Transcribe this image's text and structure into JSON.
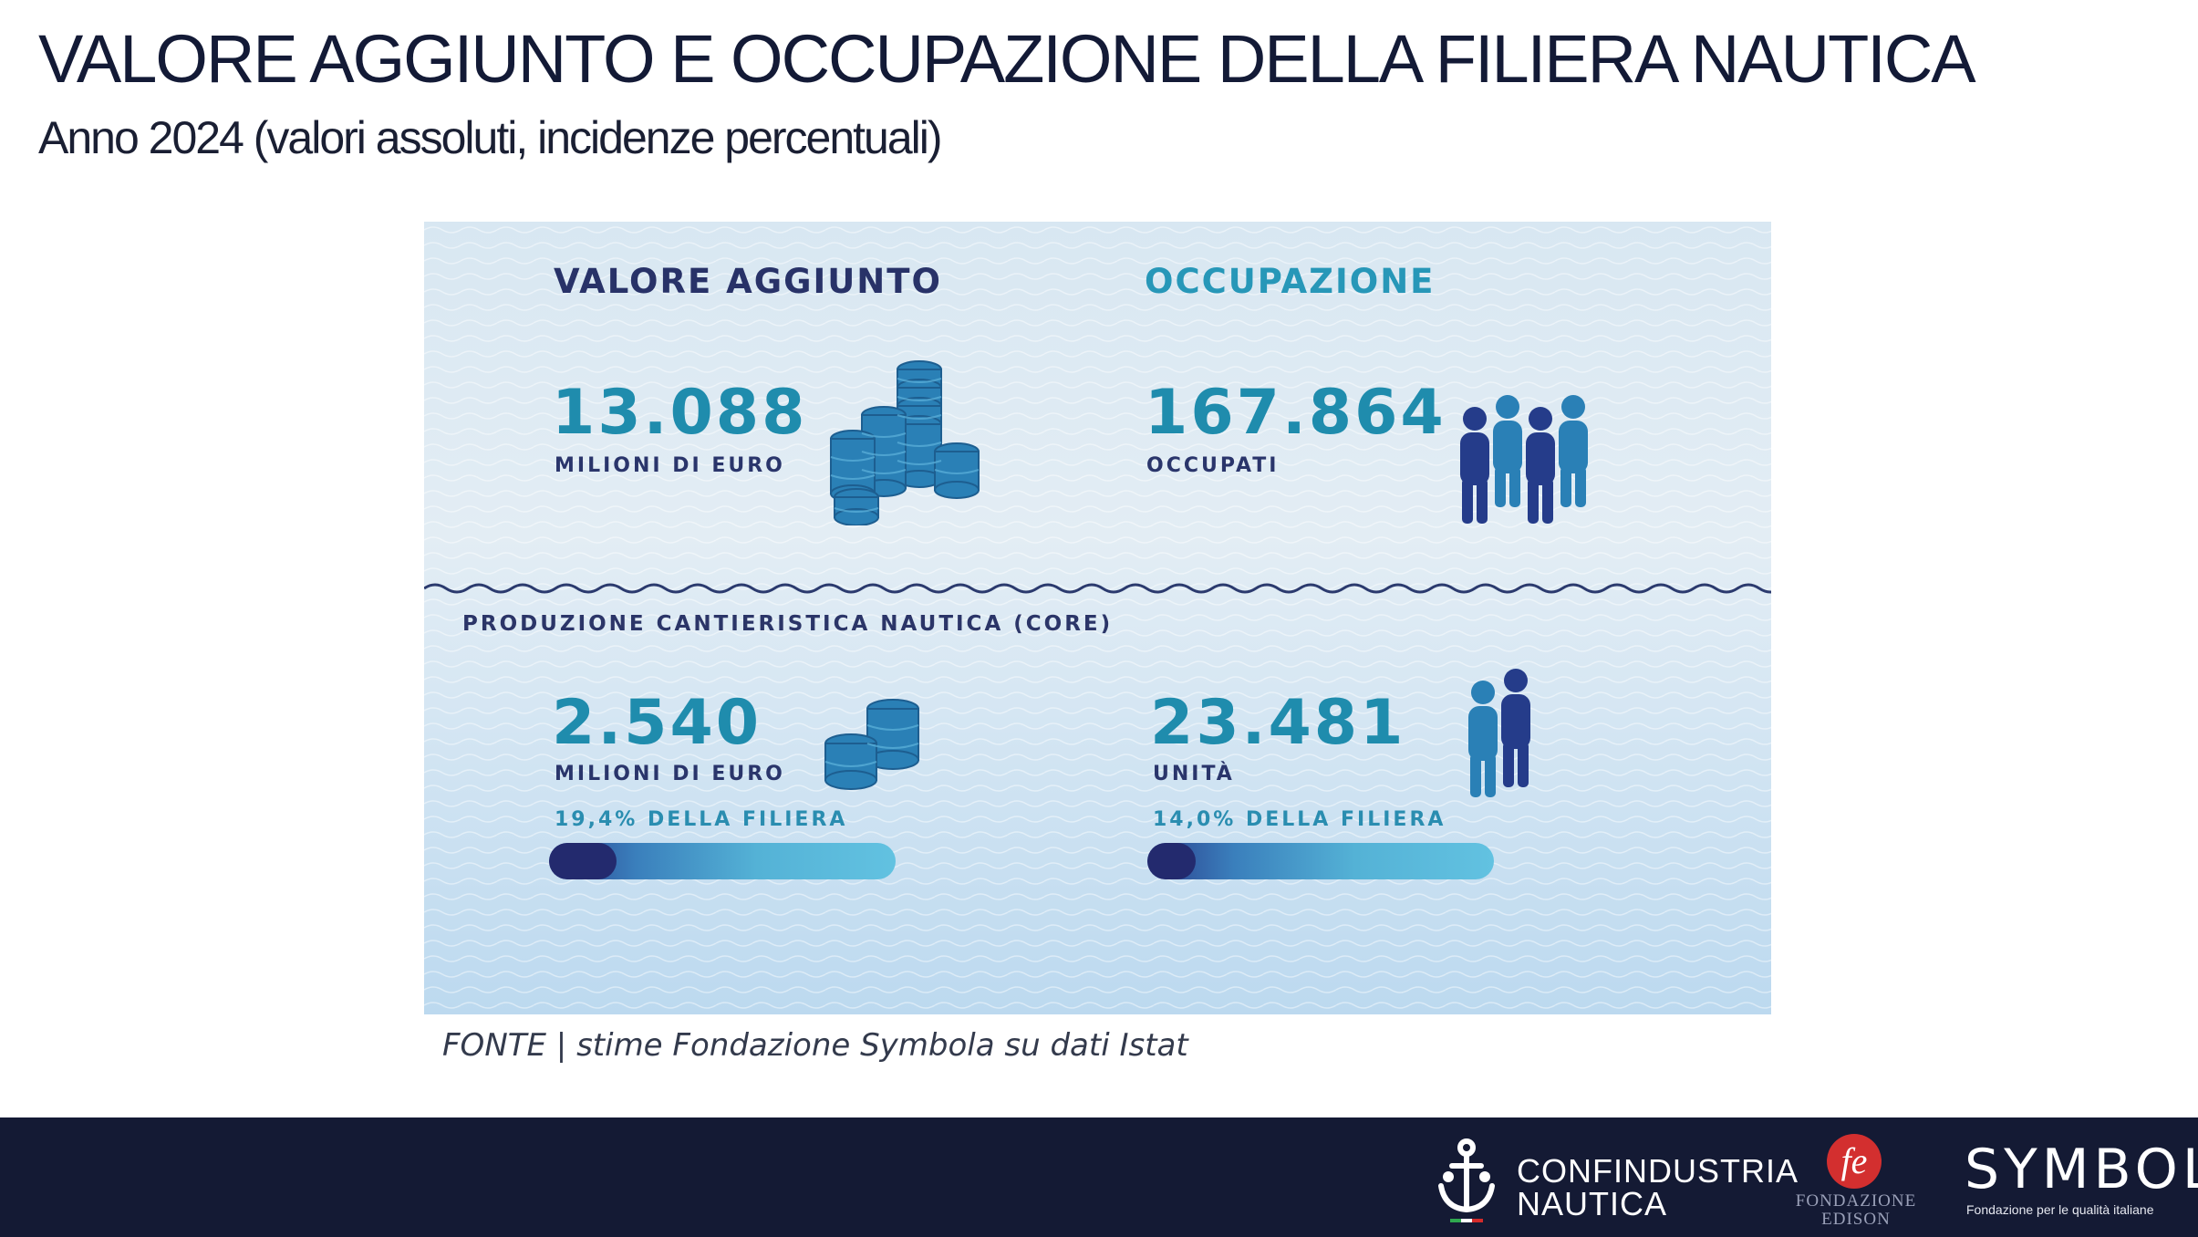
{
  "header": {
    "title": "VALORE AGGIUNTO E OCCUPAZIONE DELLA FILIERA NAUTICA",
    "subtitle": "Anno 2024 (valori assoluti, incidenze percentuali)"
  },
  "infographic": {
    "filiera": {
      "value_added": {
        "heading": "VALORE AGGIUNTO",
        "value": "13.088",
        "unit": "MILIONI DI EURO",
        "icon": "coin-stacks-icon"
      },
      "employment": {
        "heading": "OCCUPAZIONE",
        "value": "167.864",
        "unit": "OCCUPATI",
        "icon": "people-group-icon"
      }
    },
    "core": {
      "label": "PRODUZIONE CANTIERISTICA NAUTICA (CORE)",
      "value_added": {
        "value": "2.540",
        "unit": "MILIONI DI EURO",
        "share_text": "19,4% DELLA FILIERA",
        "share_fraction": 0.194,
        "icon": "coin-stacks-icon"
      },
      "employment": {
        "value": "23.481",
        "unit": "UNITÀ",
        "share_text": "14,0% DELLA FILIERA",
        "share_fraction": 0.14,
        "icon": "people-pair-icon"
      }
    },
    "colors": {
      "navy": "#2a356b",
      "teal": "#1f8cad",
      "bar_fill": "#232a6e"
    }
  },
  "source": "FONTE |  stime Fondazione Symbola su dati Istat",
  "footer": {
    "confindustria": {
      "line1": "CONFINDUSTRIA",
      "line2": "NAUTICA",
      "icon": "anchor-icon"
    },
    "edison": {
      "line1": "FONDAZIONE",
      "line2": "EDISON",
      "icon": "fe-monogram-icon"
    },
    "symbola": {
      "name": "SYMBOLA",
      "tagline": "Fondazione per le qualità italiane"
    }
  }
}
